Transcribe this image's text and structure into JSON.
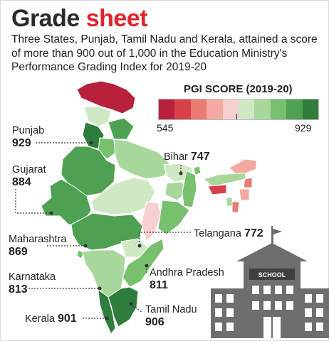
{
  "title": {
    "part1": "Grade",
    "part2": "sheet"
  },
  "subtitle": "Three States, Punjab, Tamil Nadu and Kerala, attained a score of more than 900 out of 1,000 in the Education Ministry's Performance Grading Index for 2019-20",
  "legend": {
    "title": "PGI SCORE (2019-20)",
    "min": "545",
    "max": "929",
    "colors": [
      "#b8213b",
      "#d8404a",
      "#ea7a72",
      "#f3a99f",
      "#f6cfd0",
      "#cfe8c4",
      "#a8d79b",
      "#78c06d",
      "#4ea152",
      "#2f7d3c"
    ]
  },
  "states": [
    {
      "name": "Punjab",
      "score": "929"
    },
    {
      "name": "Gujarat",
      "score": "884"
    },
    {
      "name": "Maharashtra",
      "score": "869"
    },
    {
      "name": "Karnataka",
      "score": "813"
    },
    {
      "name": "Kerala",
      "score": "901"
    },
    {
      "name": "Bihar",
      "score": "747"
    },
    {
      "name": "Telangana",
      "score": "772"
    },
    {
      "name": "Andhra Pradesh",
      "score": "811"
    },
    {
      "name": "Tamil Nadu",
      "score": "906"
    }
  ],
  "school_sign": "SCHOOL",
  "colors": {
    "title_accent": "#e2232a",
    "leader": "#333333",
    "building": "#6d6e71"
  }
}
